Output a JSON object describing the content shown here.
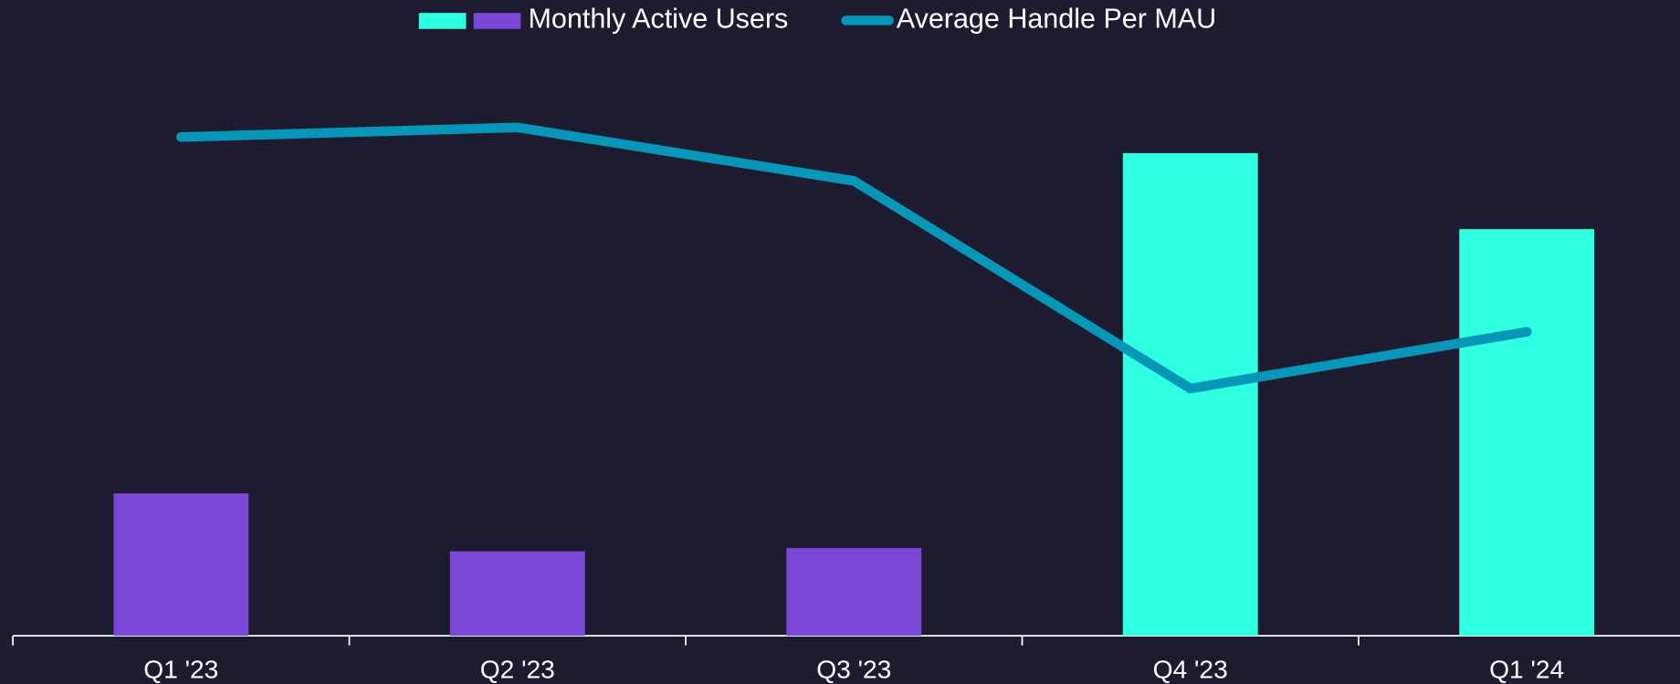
{
  "chart_data": {
    "type": "bar-line",
    "categories": [
      "Q1 '23",
      "Q2 '23",
      "Q3 '23",
      "Q4 '23",
      "Q1 '24"
    ],
    "series": [
      {
        "name": "Monthly Active Users",
        "type": "bar",
        "colors": [
          "#7b47d6",
          "#7b47d6",
          "#7b47d6",
          "#2effe0",
          "#2effe0"
        ],
        "legend_colors": [
          "#2effe0",
          "#7b47d6"
        ],
        "values": [
          133,
          79,
          82,
          451,
          380
        ]
      },
      {
        "name": "Average Handle Per MAU",
        "type": "line",
        "axis": "y2",
        "color": "#0795b8",
        "values": [
          466,
          475,
          425,
          231,
          284
        ]
      }
    ],
    "ylim": [
      0,
      550
    ],
    "y2lim": [
      0,
      550
    ],
    "legend": "top"
  }
}
